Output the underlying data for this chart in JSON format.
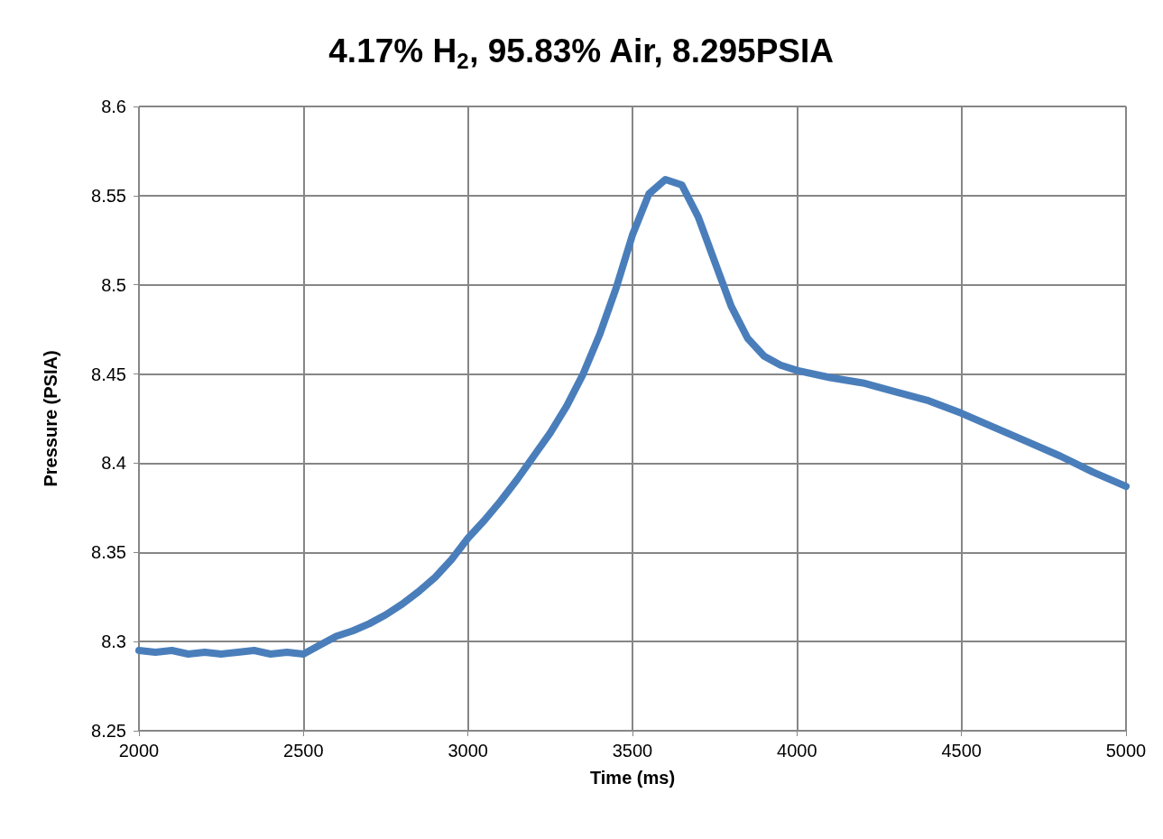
{
  "chart_data": {
    "type": "line",
    "title": "4.17% H$_{2}$, 95.83% Air, 8.295PSIA",
    "xlabel": "Time (ms)",
    "ylabel": "Pressure (PSIA)",
    "x": [
      2000,
      2050,
      2100,
      2150,
      2200,
      2250,
      2300,
      2350,
      2400,
      2450,
      2500,
      2550,
      2600,
      2650,
      2700,
      2750,
      2800,
      2850,
      2900,
      2950,
      3000,
      3050,
      3100,
      3150,
      3200,
      3250,
      3300,
      3350,
      3400,
      3450,
      3500,
      3550,
      3600,
      3650,
      3700,
      3750,
      3800,
      3850,
      3900,
      3950,
      4000,
      4100,
      4200,
      4300,
      4400,
      4500,
      4600,
      4700,
      4800,
      4900,
      5000
    ],
    "series": [
      {
        "color": "#4a7ebb",
        "values": [
          8.295,
          8.294,
          8.295,
          8.293,
          8.294,
          8.293,
          8.294,
          8.295,
          8.293,
          8.294,
          8.293,
          8.298,
          8.303,
          8.306,
          8.31,
          8.315,
          8.321,
          8.328,
          8.336,
          8.346,
          8.358,
          8.368,
          8.379,
          8.391,
          8.404,
          8.417,
          8.432,
          8.45,
          8.472,
          8.498,
          8.528,
          8.551,
          8.559,
          8.556,
          8.538,
          8.513,
          8.488,
          8.47,
          8.46,
          8.455,
          8.452,
          8.448,
          8.445,
          8.44,
          8.435,
          8.428,
          8.42,
          8.412,
          8.404,
          8.395,
          8.387
        ]
      }
    ],
    "xlim": [
      2000,
      5000
    ],
    "xticks": [
      2000,
      2500,
      3000,
      3500,
      4000,
      4500,
      5000
    ],
    "ylim": [
      8.25,
      8.6
    ],
    "yticks": [
      8.25,
      8.3,
      8.35,
      8.4,
      8.45,
      8.5,
      8.55,
      8.6
    ],
    "grid": true,
    "line_style": "solid"
  }
}
